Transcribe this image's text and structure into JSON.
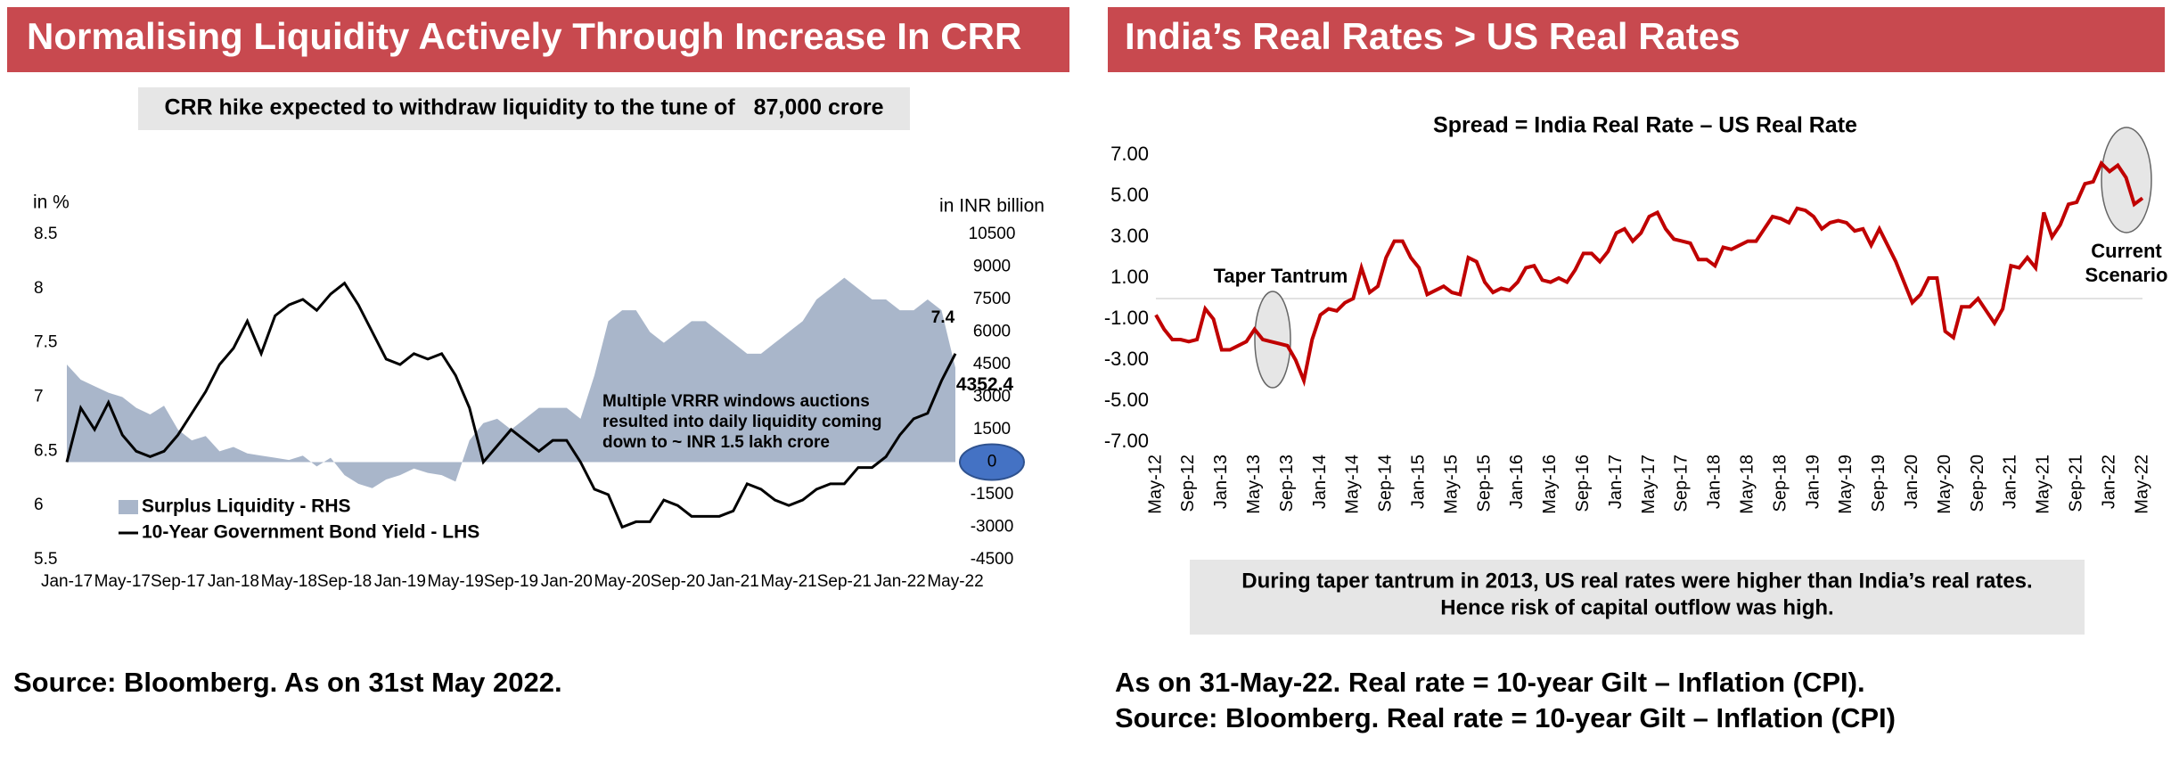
{
  "left_panel": {
    "header": "Normalising Liquidity Actively Through Increase In CRR",
    "source": "Source: Bloomberg. As on 31st May 2022."
  },
  "right_panel": {
    "header": "India’s Real Rates > US Real Rates",
    "note": [
      "During taper tantrum in 2013, US real rates were higher than India’s real rates.",
      "Hence risk of capital outflow was high."
    ],
    "footer": [
      "As on 31-May-22. Real rate = 10-year Gilt – Inflation (CPI).",
      "Source: Bloomberg. Real rate = 10-year Gilt – Inflation (CPI)"
    ]
  },
  "chart_data": [
    {
      "type": "combo",
      "subtitle": "CRR hike expected to withdraw liquidity to the tune of   87,000 crore",
      "ylabel": "in %",
      "y2label": "in INR billion",
      "annotation": [
        "Multiple VRRR windows auctions",
        "resulted into daily liquidity coming",
        "down to ~ INR 1.5 lakh crore"
      ],
      "categories": [
        "Jan-17",
        null,
        null,
        null,
        "May-17",
        null,
        null,
        null,
        "Sep-17",
        null,
        null,
        null,
        "Jan-18",
        null,
        null,
        null,
        "May-18",
        null,
        null,
        null,
        "Sep-18",
        null,
        null,
        null,
        "Jan-19",
        null,
        null,
        null,
        "May-19",
        null,
        null,
        null,
        "Sep-19",
        null,
        null,
        null,
        "Jan-20",
        null,
        null,
        null,
        "May-20",
        null,
        null,
        null,
        "Sep-20",
        null,
        null,
        null,
        "Jan-21",
        null,
        null,
        null,
        "May-21",
        null,
        null,
        null,
        "Sep-21",
        null,
        null,
        null,
        "Jan-22",
        null,
        null,
        null,
        "May-22"
      ],
      "series": [
        {
          "name": "Surplus Liquidity - RHS",
          "type": "area",
          "axis": "y2",
          "color": "#a9b6ca",
          "values": [
            4500,
            3800,
            3500,
            3200,
            3000,
            2500,
            2200,
            2600,
            1500,
            1000,
            1200,
            500,
            700,
            400,
            300,
            200,
            100,
            300,
            -200,
            200,
            -600,
            -1000,
            -1200,
            -800,
            -600,
            -300,
            -500,
            -600,
            -900,
            1000,
            1800,
            2000,
            1500,
            2000,
            2500,
            2500,
            2500,
            2000,
            4000,
            6500,
            7000,
            7000,
            6000,
            5500,
            6000,
            6500,
            6500,
            6000,
            5500,
            5000,
            5000,
            5500,
            6000,
            6500,
            7500,
            8000,
            8500,
            8000,
            7500,
            7500,
            7000,
            7000,
            7500,
            7000,
            4352.4
          ]
        },
        {
          "name": "10-Year Government Bond Yield - LHS",
          "type": "line",
          "color": "#000000",
          "values": [
            6.4,
            6.9,
            6.7,
            6.95,
            6.65,
            6.5,
            6.45,
            6.5,
            6.65,
            6.85,
            7.05,
            7.3,
            7.45,
            7.7,
            7.4,
            7.75,
            7.85,
            7.9,
            7.8,
            7.95,
            8.05,
            7.85,
            7.6,
            7.35,
            7.3,
            7.4,
            7.35,
            7.4,
            7.2,
            6.9,
            6.4,
            6.55,
            6.7,
            6.6,
            6.5,
            6.6,
            6.6,
            6.4,
            6.15,
            6.1,
            5.8,
            5.85,
            5.85,
            6.05,
            6.0,
            5.9,
            5.9,
            5.9,
            5.95,
            6.2,
            6.15,
            6.05,
            6.0,
            6.05,
            6.15,
            6.2,
            6.2,
            6.35,
            6.35,
            6.45,
            6.65,
            6.8,
            6.85,
            7.15,
            7.4
          ]
        }
      ],
      "ylim": [
        5.5,
        8.5
      ],
      "yticks": [
        5.5,
        6,
        6.5,
        7,
        7.5,
        8,
        8.5
      ],
      "y2lim": [
        -4500,
        10500
      ],
      "y2ticks": [
        -4500,
        -3000,
        -1500,
        0,
        1500,
        3000,
        4500,
        6000,
        7500,
        9000,
        10500
      ],
      "legend": "bottom-left"
    },
    {
      "type": "line",
      "title": "Spread = India Real Rate – US Real Rate",
      "categories": [
        "May-12",
        null,
        null,
        null,
        "Sep-12",
        null,
        null,
        null,
        "Jan-13",
        null,
        null,
        null,
        "May-13",
        null,
        null,
        null,
        "Sep-13",
        null,
        null,
        null,
        "Jan-14",
        null,
        null,
        null,
        "May-14",
        null,
        null,
        null,
        "Sep-14",
        null,
        null,
        null,
        "Jan-15",
        null,
        null,
        null,
        "May-15",
        null,
        null,
        null,
        "Sep-15",
        null,
        null,
        null,
        "Jan-16",
        null,
        null,
        null,
        "May-16",
        null,
        null,
        null,
        "Sep-16",
        null,
        null,
        null,
        "Jan-17",
        null,
        null,
        null,
        "May-17",
        null,
        null,
        null,
        "Sep-17",
        null,
        null,
        null,
        "Jan-18",
        null,
        null,
        null,
        "May-18",
        null,
        null,
        null,
        "Sep-18",
        null,
        null,
        null,
        "Jan-19",
        null,
        null,
        null,
        "May-19",
        null,
        null,
        null,
        "Sep-19",
        null,
        null,
        null,
        "Jan-20",
        null,
        null,
        null,
        "May-20",
        null,
        null,
        null,
        "Sep-20",
        null,
        null,
        null,
        "Jan-21",
        null,
        null,
        null,
        "May-21",
        null,
        null,
        null,
        "Sep-21",
        null,
        null,
        null,
        "Jan-22",
        null,
        null,
        null,
        "May-22"
      ],
      "values": [
        -0.8,
        -1.5,
        -2.0,
        -2.0,
        -2.1,
        -2.0,
        -0.5,
        -1.0,
        -2.5,
        -2.5,
        -2.3,
        -2.1,
        -1.5,
        -2.0,
        -2.1,
        -2.2,
        -2.3,
        -3.0,
        -4.0,
        -2.0,
        -0.8,
        -0.5,
        -0.6,
        -0.2,
        0.0,
        1.5,
        0.3,
        0.6,
        2.0,
        2.8,
        2.8,
        2.0,
        1.5,
        0.2,
        0.4,
        0.6,
        0.3,
        0.2,
        2.0,
        1.8,
        0.8,
        0.3,
        0.5,
        0.4,
        0.8,
        1.5,
        1.6,
        0.9,
        0.8,
        1.0,
        0.8,
        1.4,
        2.2,
        2.2,
        1.8,
        2.3,
        3.2,
        3.4,
        2.8,
        3.2,
        4.0,
        4.2,
        3.4,
        2.9,
        2.8,
        2.7,
        1.9,
        1.9,
        1.6,
        2.5,
        2.4,
        2.6,
        2.8,
        2.8,
        3.4,
        4.0,
        3.9,
        3.7,
        4.4,
        4.3,
        4.0,
        3.4,
        3.7,
        3.8,
        3.7,
        3.3,
        3.4,
        2.6,
        3.4,
        2.6,
        1.8,
        0.8,
        -0.2,
        0.2,
        1.0,
        1.0,
        -1.6,
        -1.9,
        -0.4,
        -0.4,
        0.0,
        -0.6,
        -1.2,
        -0.5,
        1.6,
        1.5,
        2.0,
        1.5,
        4.2,
        3.0,
        3.6,
        4.6,
        4.7,
        5.6,
        5.7,
        6.6,
        6.2,
        6.5,
        5.9,
        4.6,
        4.9
      ],
      "color": "#c00000",
      "ylim": [
        -7,
        7
      ],
      "yticks": [
        {
          "value": -7,
          "label": "-7.00"
        },
        {
          "value": -5,
          "label": "-5.00"
        },
        {
          "value": -3,
          "label": "-3.00"
        },
        {
          "value": -1,
          "label": "-1.00"
        },
        {
          "value": 1,
          "label": "1.00"
        },
        {
          "value": 3,
          "label": "3.00"
        },
        {
          "value": 5,
          "label": "5.00"
        },
        {
          "value": 7,
          "label": "7.00"
        }
      ],
      "annotations": [
        {
          "lines": [
            "Taper Tantrum"
          ]
        },
        {
          "lines": [
            "Current",
            "Scenario"
          ]
        }
      ]
    }
  ]
}
